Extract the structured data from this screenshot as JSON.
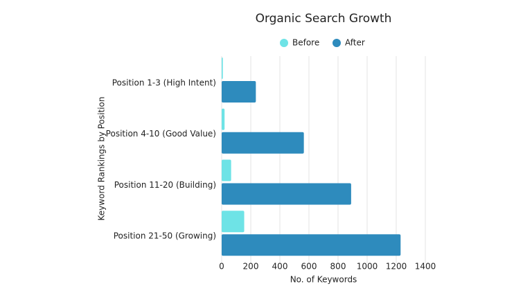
{
  "chart_data": {
    "type": "hbar",
    "title": "Organic Search Growth",
    "x_label": "No. of Keywords",
    "y_label": "Keyword Rankings by Position",
    "categories": [
      "Position 1-3 (High Intent)",
      "Position 4-10 (Good Value)",
      "Position 11-20 (Building)",
      "Position 21-50 (Growing)"
    ],
    "series": [
      {
        "name": "Before",
        "color": "#6ee3e6",
        "values": [
          8,
          20,
          65,
          155
        ]
      },
      {
        "name": "After",
        "color": "#2e8bbd",
        "values": [
          235,
          565,
          890,
          1230
        ]
      }
    ],
    "xlim": [
      0,
      1400
    ],
    "xticks": [
      0,
      200,
      400,
      600,
      800,
      1000,
      1200,
      1400
    ],
    "grid": true,
    "legend": "top"
  }
}
